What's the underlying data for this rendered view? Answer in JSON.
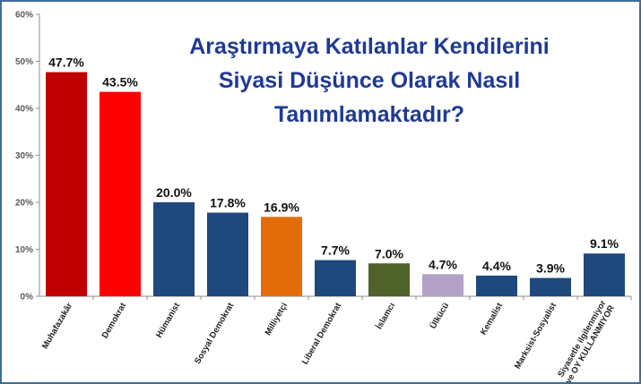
{
  "chart_data": {
    "type": "bar",
    "title": [
      "Araştırmaya Katılanlar Kendilerini",
      "Siyasi Düşünce Olarak Nasıl",
      "Tanımlamaktadır?"
    ],
    "categories": [
      [
        "Muhafazakâr"
      ],
      [
        "Demokrat"
      ],
      [
        "Hümanist"
      ],
      [
        "Sosyal Demokrat"
      ],
      [
        "Milliyetçi"
      ],
      [
        "Liberal Demokrat"
      ],
      [
        "İslamcı"
      ],
      [
        "Ülkücü"
      ],
      [
        "Kemalist"
      ],
      [
        "Marksist-Sosyalist"
      ],
      [
        "Siyasetle ilgilenmiyor",
        "ve OY KULLANMIYOR"
      ]
    ],
    "values": [
      47.7,
      43.5,
      20.0,
      17.8,
      16.9,
      7.7,
      7.0,
      4.7,
      4.4,
      3.9,
      9.1
    ],
    "value_labels": [
      "47.7%",
      "43.5%",
      "20.0%",
      "17.8%",
      "16.9%",
      "7.7%",
      "7.0%",
      "4.7%",
      "4.4%",
      "3.9%",
      "9.1%"
    ],
    "bar_colors": [
      "#c00000",
      "#ff0000",
      "#1f497d",
      "#1f497d",
      "#e36c09",
      "#1f497d",
      "#4f6228",
      "#b3a2c7",
      "#1f497d",
      "#1f497d",
      "#1f497d"
    ],
    "ylim": [
      0,
      60
    ],
    "yticks": [
      0,
      10,
      20,
      30,
      40,
      50,
      60
    ],
    "ytick_labels": [
      "0%",
      "10%",
      "20%",
      "30%",
      "40%",
      "50%",
      "60%"
    ],
    "xlabel": "",
    "ylabel": "",
    "grid": false,
    "legend": "none"
  }
}
